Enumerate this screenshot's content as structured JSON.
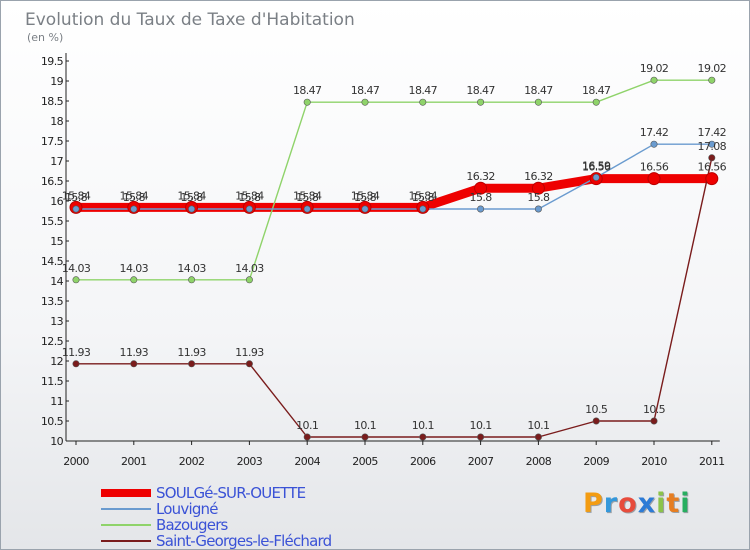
{
  "chart_data": {
    "type": "line",
    "title": "Evolution du Taux de Taxe d'Habitation",
    "subtitle": "(en %)",
    "xlabel": "",
    "ylabel": "",
    "categories": [
      "2000",
      "2001",
      "2002",
      "2003",
      "2004",
      "2005",
      "2006",
      "2007",
      "2008",
      "2009",
      "2010",
      "2011"
    ],
    "ylim": [
      10,
      19.5
    ],
    "yticks": [
      "10",
      "10.5",
      "11",
      "11.5",
      "12",
      "12.5",
      "13",
      "13.5",
      "14",
      "14.5",
      "15",
      "15.5",
      "16",
      "16.5",
      "17",
      "17.5",
      "18",
      "18.5",
      "19",
      "19.5"
    ],
    "grid": false,
    "series": [
      {
        "name": "SOULGé-SUR-OUETTE",
        "color": "#ee0000",
        "values": [
          15.84,
          15.84,
          15.84,
          15.84,
          15.84,
          15.84,
          15.84,
          16.32,
          16.32,
          16.56,
          16.56,
          16.56
        ],
        "labels": [
          "15.84",
          "15.84",
          "15.84",
          "15.84",
          "15.84",
          "15.84",
          "15.84",
          "16.32",
          "16.32",
          "16.56",
          "16.56",
          "16.56"
        ]
      },
      {
        "name": "Louvigné",
        "color": "#6a9bcf",
        "values": [
          15.8,
          15.8,
          15.8,
          15.8,
          15.8,
          15.8,
          15.8,
          15.8,
          15.8,
          16.59,
          17.42,
          17.42
        ],
        "labels": [
          "15.8",
          "15.8",
          "15.8",
          "15.8",
          "15.8",
          "15.8",
          "15.8",
          "15.8",
          "15.8",
          "16.59",
          "17.42",
          "17.42"
        ]
      },
      {
        "name": "Bazougers",
        "color": "#8fd36a",
        "values": [
          14.03,
          14.03,
          14.03,
          14.03,
          18.47,
          18.47,
          18.47,
          18.47,
          18.47,
          18.47,
          19.02,
          19.02
        ],
        "labels": [
          "14.03",
          "14.03",
          "14.03",
          "14.03",
          "18.47",
          "18.47",
          "18.47",
          "18.47",
          "18.47",
          "18.47",
          "19.02",
          "19.02"
        ]
      },
      {
        "name": "Saint-Georges-le-Fléchard",
        "color": "#7a1c1c",
        "values": [
          11.93,
          11.93,
          11.93,
          11.93,
          10.1,
          10.1,
          10.1,
          10.1,
          10.1,
          10.5,
          10.5,
          17.08
        ],
        "labels": [
          "11.93",
          "11.93",
          "11.93",
          "11.93",
          "10.1",
          "10.1",
          "10.1",
          "10.1",
          "10.1",
          "10.5",
          "10.5",
          "17.08"
        ]
      }
    ]
  },
  "logo": {
    "letters": [
      "P",
      "r",
      "o",
      "x",
      "i",
      "t",
      "i"
    ],
    "colors": [
      "#f39c12",
      "#3498db",
      "#e74c3c",
      "#2c7bd6",
      "#8bc34a",
      "#e67e22",
      "#27ae60"
    ]
  }
}
